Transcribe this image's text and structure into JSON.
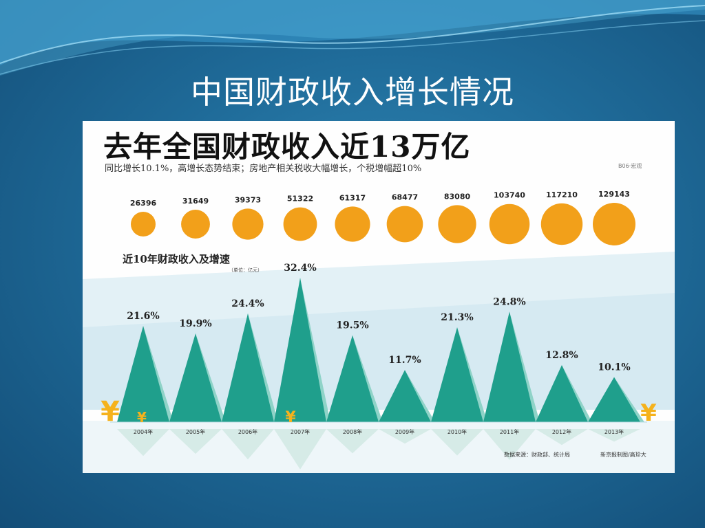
{
  "slide": {
    "title": "中国财政收入增长情况"
  },
  "infographic": {
    "headline": "去年全国财政收入近13万亿",
    "subtitle": "同比增长10.1%，高增长态势结束；房地产相关税收大幅增长，个税增幅超10%",
    "source_tag": "B06·宏观",
    "section_title": "近10年财政收入及增速",
    "unit_note": "（单位：亿元）",
    "footnote_source": "数据来源：财政部、统计局",
    "footnote_credit": "新京报制图/高珍大",
    "yen_symbol": "¥"
  },
  "colors": {
    "teal": "#1f9f8c",
    "teal_shadow": "#8fd3c8",
    "orange": "#f2a01a",
    "background": "#1f6b99"
  },
  "chart_data": {
    "type": "bar",
    "categories": [
      "2004年",
      "2005年",
      "2006年",
      "2007年",
      "2008年",
      "2009年",
      "2010年",
      "2011年",
      "2012年",
      "2013年"
    ],
    "series": [
      {
        "name": "财政收入",
        "values": [
          26396,
          31649,
          39373,
          51322,
          61317,
          68477,
          83080,
          103740,
          117210,
          129143
        ]
      },
      {
        "name": "增速",
        "values": [
          21.6,
          19.9,
          24.4,
          32.4,
          19.5,
          11.7,
          21.3,
          24.8,
          12.8,
          10.1
        ]
      }
    ],
    "growth_labels": [
      "21.6%",
      "19.9%",
      "24.4%",
      "32.4%",
      "19.5%",
      "11.7%",
      "21.3%",
      "24.8%",
      "12.8%",
      "10.1%"
    ],
    "revenue_labels": [
      "26396",
      "31649",
      "39373",
      "51322",
      "61317",
      "68477",
      "83080",
      "103740",
      "117210",
      "129143"
    ]
  }
}
